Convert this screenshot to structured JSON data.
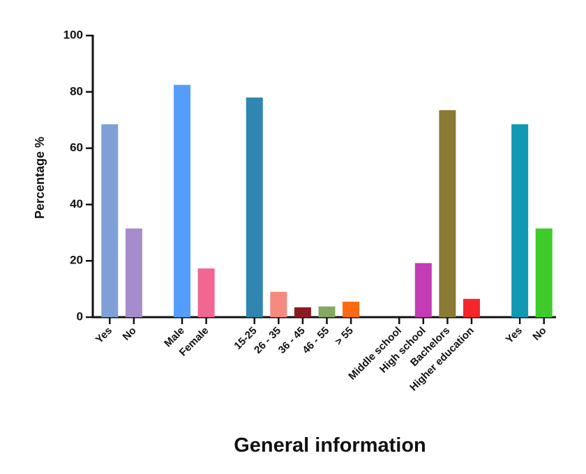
{
  "chart_data": {
    "type": "bar",
    "categories": [
      "Yes",
      "No",
      null,
      "Male",
      "Female",
      null,
      "15-25",
      "26 - 35",
      "36 - 45",
      "46 - 55",
      "> 55",
      null,
      "Middle school",
      "High school",
      "Bachelors",
      "Higher education",
      null,
      "Yes",
      "No"
    ],
    "values": [
      68.5,
      31.5,
      null,
      82.5,
      17.3,
      null,
      78,
      9,
      3.5,
      3.8,
      5.5,
      null,
      0,
      19.2,
      73.5,
      6.5,
      null,
      68.5,
      31.5
    ],
    "colors": [
      "#7fa0d6",
      "#a68ccc",
      null,
      "#559dfa",
      "#f26692",
      null,
      "#2f86b0",
      "#f68a80",
      "#8c1a22",
      "#86a862",
      "#fc6a12",
      null,
      "#555555",
      "#c43bb6",
      "#8a7a36",
      "#f5262a",
      null,
      "#0f99b5",
      "#3fcc2a"
    ],
    "ylim": [
      0,
      100
    ],
    "yticks": [
      0,
      20,
      40,
      60,
      80,
      100
    ],
    "ylabel": "Percentage %",
    "xlabel": "General information"
  }
}
